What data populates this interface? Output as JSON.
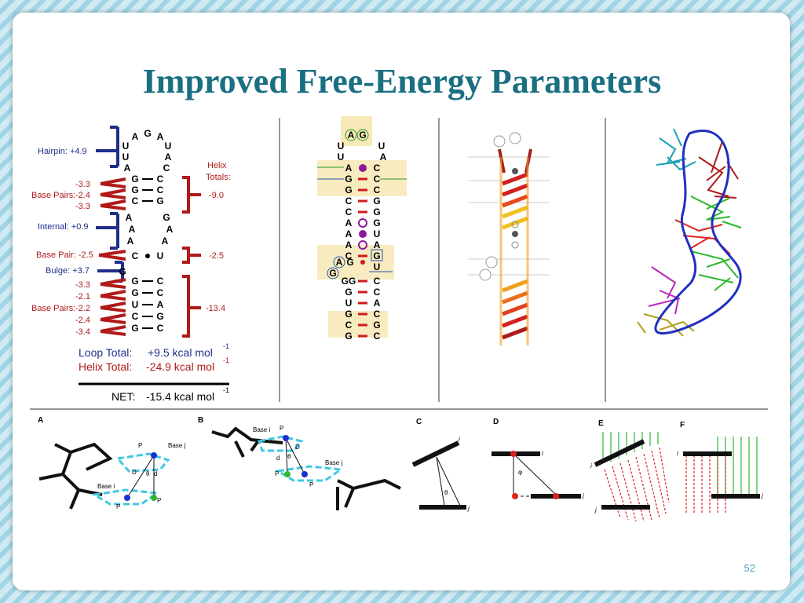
{
  "slide": {
    "title": "Improved Free-Energy Parameters",
    "page_number": "52"
  },
  "energy_panel": {
    "hairpin": "Hairpin: +4.9",
    "base_pairs_1_values": [
      "-3.3",
      "-2.4",
      "-3.3"
    ],
    "base_pairs_1_label": "Base Pairs:",
    "internal": "Internal: +0.9",
    "base_pair_2": "Base Pair: -2.5",
    "bulge": "Bulge: +3.7",
    "base_pairs_3_values": [
      "-3.3",
      "-2.1",
      "-2.2",
      "-2.4",
      "-3.4"
    ],
    "base_pairs_3_label": "Base Pairs:",
    "helix_totals_label_1": "Helix",
    "helix_totals_label_2": "Totals:",
    "helix_total_values": [
      "-9.0",
      "-2.5",
      "-13.4"
    ],
    "loop_total_label": "Loop Total:",
    "loop_total_value": "+9.5 kcal mol",
    "helix_total_label": "Helix Total:",
    "helix_total_value": "-24.9 kcal mol",
    "net_label": "NET:",
    "net_value": "-15.4 kcal mol",
    "exponent": "-1"
  },
  "sequence": {
    "loop_top": [
      "A",
      "G",
      "A"
    ],
    "loop_left": [
      "U",
      "U",
      "A"
    ],
    "loop_right": [
      "U",
      "A",
      "C"
    ],
    "helix1": [
      [
        "G",
        "C"
      ],
      [
        "G",
        "C"
      ],
      [
        "C",
        "G"
      ]
    ],
    "internal_left": [
      "A",
      "A",
      "A"
    ],
    "internal_right": [
      "G",
      "A",
      "A"
    ],
    "helix2": [
      [
        "C",
        "U"
      ]
    ],
    "bulge": "G",
    "helix3": [
      [
        "G",
        "C"
      ],
      [
        "G",
        "C"
      ],
      [
        "U",
        "A"
      ],
      [
        "C",
        "G"
      ],
      [
        "G",
        "C"
      ]
    ]
  },
  "bottom_panels": {
    "A": {
      "label": "A",
      "texts": [
        "P",
        "Base j",
        "D",
        "θ",
        "d",
        "Base i",
        "P",
        "P"
      ],
      "subs": [
        "jc",
        "ij",
        "ij",
        "jc",
        "jt"
      ]
    },
    "B": {
      "label": "B",
      "texts": [
        "Base i",
        "P",
        "D",
        "θ",
        "d",
        "P",
        "P",
        "Base j"
      ]
    },
    "C": {
      "label": "C",
      "texts": [
        "i",
        "j",
        "θ"
      ]
    },
    "D": {
      "label": "D",
      "texts": [
        "i",
        "j",
        "φ"
      ]
    },
    "E": {
      "label": "E",
      "texts": [
        "i",
        "j"
      ]
    },
    "F": {
      "label": "F",
      "texts": [
        "i",
        "j"
      ]
    }
  },
  "colors": {
    "title": "#1a6f82",
    "blue_label": "#1f2e8a",
    "red_label": "#b01a1a",
    "background_stripe": "#9fd4e6"
  }
}
